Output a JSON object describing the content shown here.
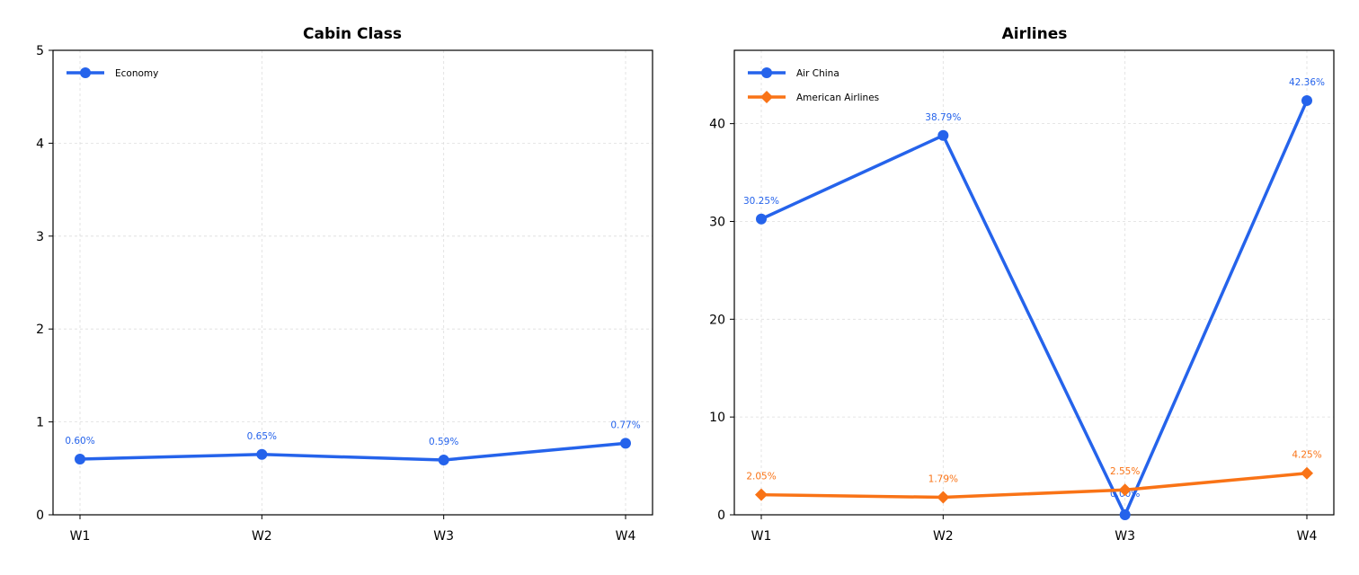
{
  "chart_data": [
    {
      "type": "line",
      "title": "Cabin Class",
      "xlabel": "",
      "ylabel": "",
      "categories": [
        "W1",
        "W2",
        "W3",
        "W4"
      ],
      "ylim": [
        0,
        5
      ],
      "yticks": [
        0,
        1,
        2,
        3,
        4,
        5
      ],
      "grid": true,
      "legend_position": "top-left",
      "series": [
        {
          "name": "Economy",
          "color": "#2563eb",
          "marker": "circle",
          "values": [
            0.6,
            0.65,
            0.59,
            0.77
          ],
          "labels": [
            "0.60%",
            "0.65%",
            "0.59%",
            "0.77%"
          ]
        }
      ]
    },
    {
      "type": "line",
      "title": "Airlines",
      "xlabel": "",
      "ylabel": "",
      "categories": [
        "W1",
        "W2",
        "W3",
        "W4"
      ],
      "ylim": [
        0,
        47.5
      ],
      "yticks": [
        0,
        10,
        20,
        30,
        40
      ],
      "grid": true,
      "legend_position": "top-left",
      "series": [
        {
          "name": "Air China",
          "color": "#2563eb",
          "marker": "circle",
          "values": [
            30.25,
            38.79,
            0.0,
            42.36
          ],
          "labels": [
            "30.25%",
            "38.79%",
            "0.00%",
            "42.36%"
          ]
        },
        {
          "name": "American Airlines",
          "color": "#f97316",
          "marker": "diamond",
          "values": [
            2.05,
            1.79,
            2.55,
            4.25
          ],
          "labels": [
            "2.05%",
            "1.79%",
            "2.55%",
            "4.25%"
          ]
        }
      ]
    }
  ]
}
